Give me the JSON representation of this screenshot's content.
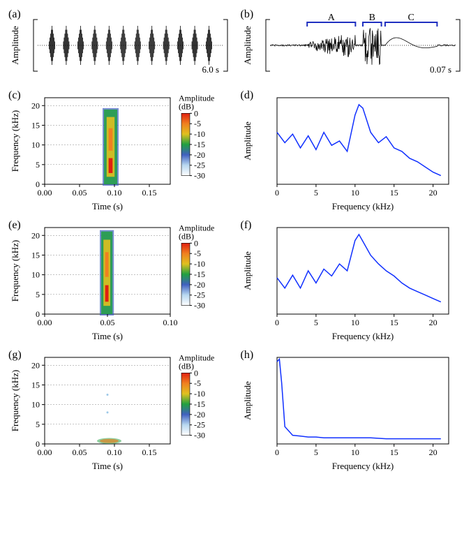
{
  "figure": {
    "background_color": "#ffffff",
    "panels": {
      "a": {
        "label": "(a)",
        "type": "oscillogram",
        "xlabel": "",
        "ylabel": "Amplitude",
        "time_label": "6.0 s",
        "n_calls": 12,
        "wave_color": "#000000",
        "baseline_dash": "1,2"
      },
      "b": {
        "label": "(b)",
        "type": "oscillogram",
        "xlabel": "",
        "ylabel": "Amplitude",
        "time_label": "0.07 s",
        "segments": [
          "A",
          "B",
          "C"
        ],
        "bracket_color": "#2030c0",
        "segment_ranges": {
          "A": [
            0.2,
            0.46
          ],
          "B": [
            0.5,
            0.6
          ],
          "C": [
            0.62,
            0.9
          ]
        },
        "wave_color": "#000000"
      },
      "c": {
        "label": "(c)",
        "type": "spectrogram",
        "xlabel": "Time (s)",
        "ylabel": "Frequency (kHz)",
        "xlim": [
          0.0,
          0.18
        ],
        "xtick_step": 0.05,
        "ylim": [
          0,
          22
        ],
        "ytick_step": 5,
        "grid_y": [
          5,
          10,
          15,
          20
        ],
        "event_time": [
          0.085,
          0.104
        ],
        "event_freq": [
          0,
          19
        ],
        "colorbar": {
          "label": "Amplitude\n(dB)",
          "min": -30,
          "max": 0,
          "tick_step": 5,
          "stops": [
            [
              "#ffffff",
              -30
            ],
            [
              "#b8d8f0",
              -25
            ],
            [
              "#4060c0",
              -20
            ],
            [
              "#20a040",
              -15
            ],
            [
              "#e0c020",
              -10
            ],
            [
              "#f08020",
              -5
            ],
            [
              "#e02010",
              0
            ]
          ]
        }
      },
      "d": {
        "label": "(d)",
        "type": "spectrum",
        "xlabel": "Frequency (kHz)",
        "ylabel": "Amplitude",
        "xlim": [
          0,
          22
        ],
        "xtick_step": 5,
        "line_color": "#1030ff",
        "points": [
          [
            0,
            0.6
          ],
          [
            1,
            0.48
          ],
          [
            2,
            0.58
          ],
          [
            3,
            0.42
          ],
          [
            4,
            0.56
          ],
          [
            5,
            0.4
          ],
          [
            6,
            0.6
          ],
          [
            7,
            0.45
          ],
          [
            8,
            0.5
          ],
          [
            9,
            0.38
          ],
          [
            10,
            0.8
          ],
          [
            10.5,
            0.92
          ],
          [
            11,
            0.88
          ],
          [
            12,
            0.6
          ],
          [
            13,
            0.48
          ],
          [
            14,
            0.55
          ],
          [
            15,
            0.42
          ],
          [
            16,
            0.38
          ],
          [
            17,
            0.3
          ],
          [
            18,
            0.26
          ],
          [
            19,
            0.2
          ],
          [
            20,
            0.14
          ],
          [
            21,
            0.1
          ]
        ]
      },
      "e": {
        "label": "(e)",
        "type": "spectrogram",
        "xlabel": "Time (s)",
        "ylabel": "Frequency (kHz)",
        "xlim": [
          0.0,
          0.1
        ],
        "xtick_step": 0.05,
        "ylim": [
          0,
          22
        ],
        "ytick_step": 5,
        "grid_y": [
          5,
          10,
          15,
          20
        ],
        "event_time": [
          0.045,
          0.054
        ],
        "event_freq": [
          0,
          21
        ],
        "colorbar": {
          "label": "Amplitude\n(dB)",
          "min": -30,
          "max": 0,
          "tick_step": 5,
          "stops": [
            [
              "#ffffff",
              -30
            ],
            [
              "#b8d8f0",
              -25
            ],
            [
              "#4060c0",
              -20
            ],
            [
              "#20a040",
              -15
            ],
            [
              "#e0c020",
              -10
            ],
            [
              "#f08020",
              -5
            ],
            [
              "#e02010",
              0
            ]
          ]
        }
      },
      "f": {
        "label": "(f)",
        "type": "spectrum",
        "xlabel": "Frequency (kHz)",
        "ylabel": "Amplitude",
        "xlim": [
          0,
          22
        ],
        "xtick_step": 5,
        "line_color": "#1030ff",
        "points": [
          [
            0,
            0.42
          ],
          [
            1,
            0.3
          ],
          [
            2,
            0.45
          ],
          [
            3,
            0.3
          ],
          [
            4,
            0.5
          ],
          [
            5,
            0.36
          ],
          [
            6,
            0.52
          ],
          [
            7,
            0.44
          ],
          [
            8,
            0.58
          ],
          [
            9,
            0.5
          ],
          [
            10,
            0.85
          ],
          [
            10.5,
            0.92
          ],
          [
            11,
            0.84
          ],
          [
            12,
            0.68
          ],
          [
            13,
            0.58
          ],
          [
            14,
            0.5
          ],
          [
            15,
            0.44
          ],
          [
            16,
            0.36
          ],
          [
            17,
            0.3
          ],
          [
            18,
            0.26
          ],
          [
            19,
            0.22
          ],
          [
            20,
            0.18
          ],
          [
            21,
            0.14
          ]
        ]
      },
      "g": {
        "label": "(g)",
        "type": "spectrogram",
        "xlabel": "Time (s)",
        "ylabel": "Frequency (kHz)",
        "xlim": [
          0.0,
          0.18
        ],
        "xtick_step": 0.05,
        "ylim": [
          0,
          22
        ],
        "ytick_step": 5,
        "grid_y": [
          5,
          10,
          15,
          20
        ],
        "event_time": [
          0.075,
          0.11
        ],
        "event_freq": [
          0,
          1.5
        ],
        "faint_dots": [
          [
            0.09,
            8
          ],
          [
            0.09,
            12.5
          ]
        ],
        "colorbar": {
          "label": "Amplitude\n(dB)",
          "min": -30,
          "max": 0,
          "tick_step": 5,
          "stops": [
            [
              "#ffffff",
              -30
            ],
            [
              "#b8d8f0",
              -25
            ],
            [
              "#4060c0",
              -20
            ],
            [
              "#20a040",
              -15
            ],
            [
              "#e0c020",
              -10
            ],
            [
              "#f08020",
              -5
            ],
            [
              "#e02010",
              0
            ]
          ]
        }
      },
      "h": {
        "label": "(h)",
        "type": "spectrum",
        "xlabel": "Frequency (kHz)",
        "ylabel": "Amplitude",
        "xlim": [
          0,
          22
        ],
        "xtick_step": 5,
        "line_color": "#1030ff",
        "points": [
          [
            0,
            0.95
          ],
          [
            0.3,
            0.98
          ],
          [
            0.6,
            0.7
          ],
          [
            1,
            0.2
          ],
          [
            2,
            0.1
          ],
          [
            3,
            0.09
          ],
          [
            4,
            0.08
          ],
          [
            5,
            0.08
          ],
          [
            6,
            0.07
          ],
          [
            8,
            0.07
          ],
          [
            10,
            0.07
          ],
          [
            12,
            0.07
          ],
          [
            14,
            0.06
          ],
          [
            16,
            0.06
          ],
          [
            18,
            0.06
          ],
          [
            20,
            0.06
          ],
          [
            21,
            0.06
          ]
        ]
      }
    }
  }
}
